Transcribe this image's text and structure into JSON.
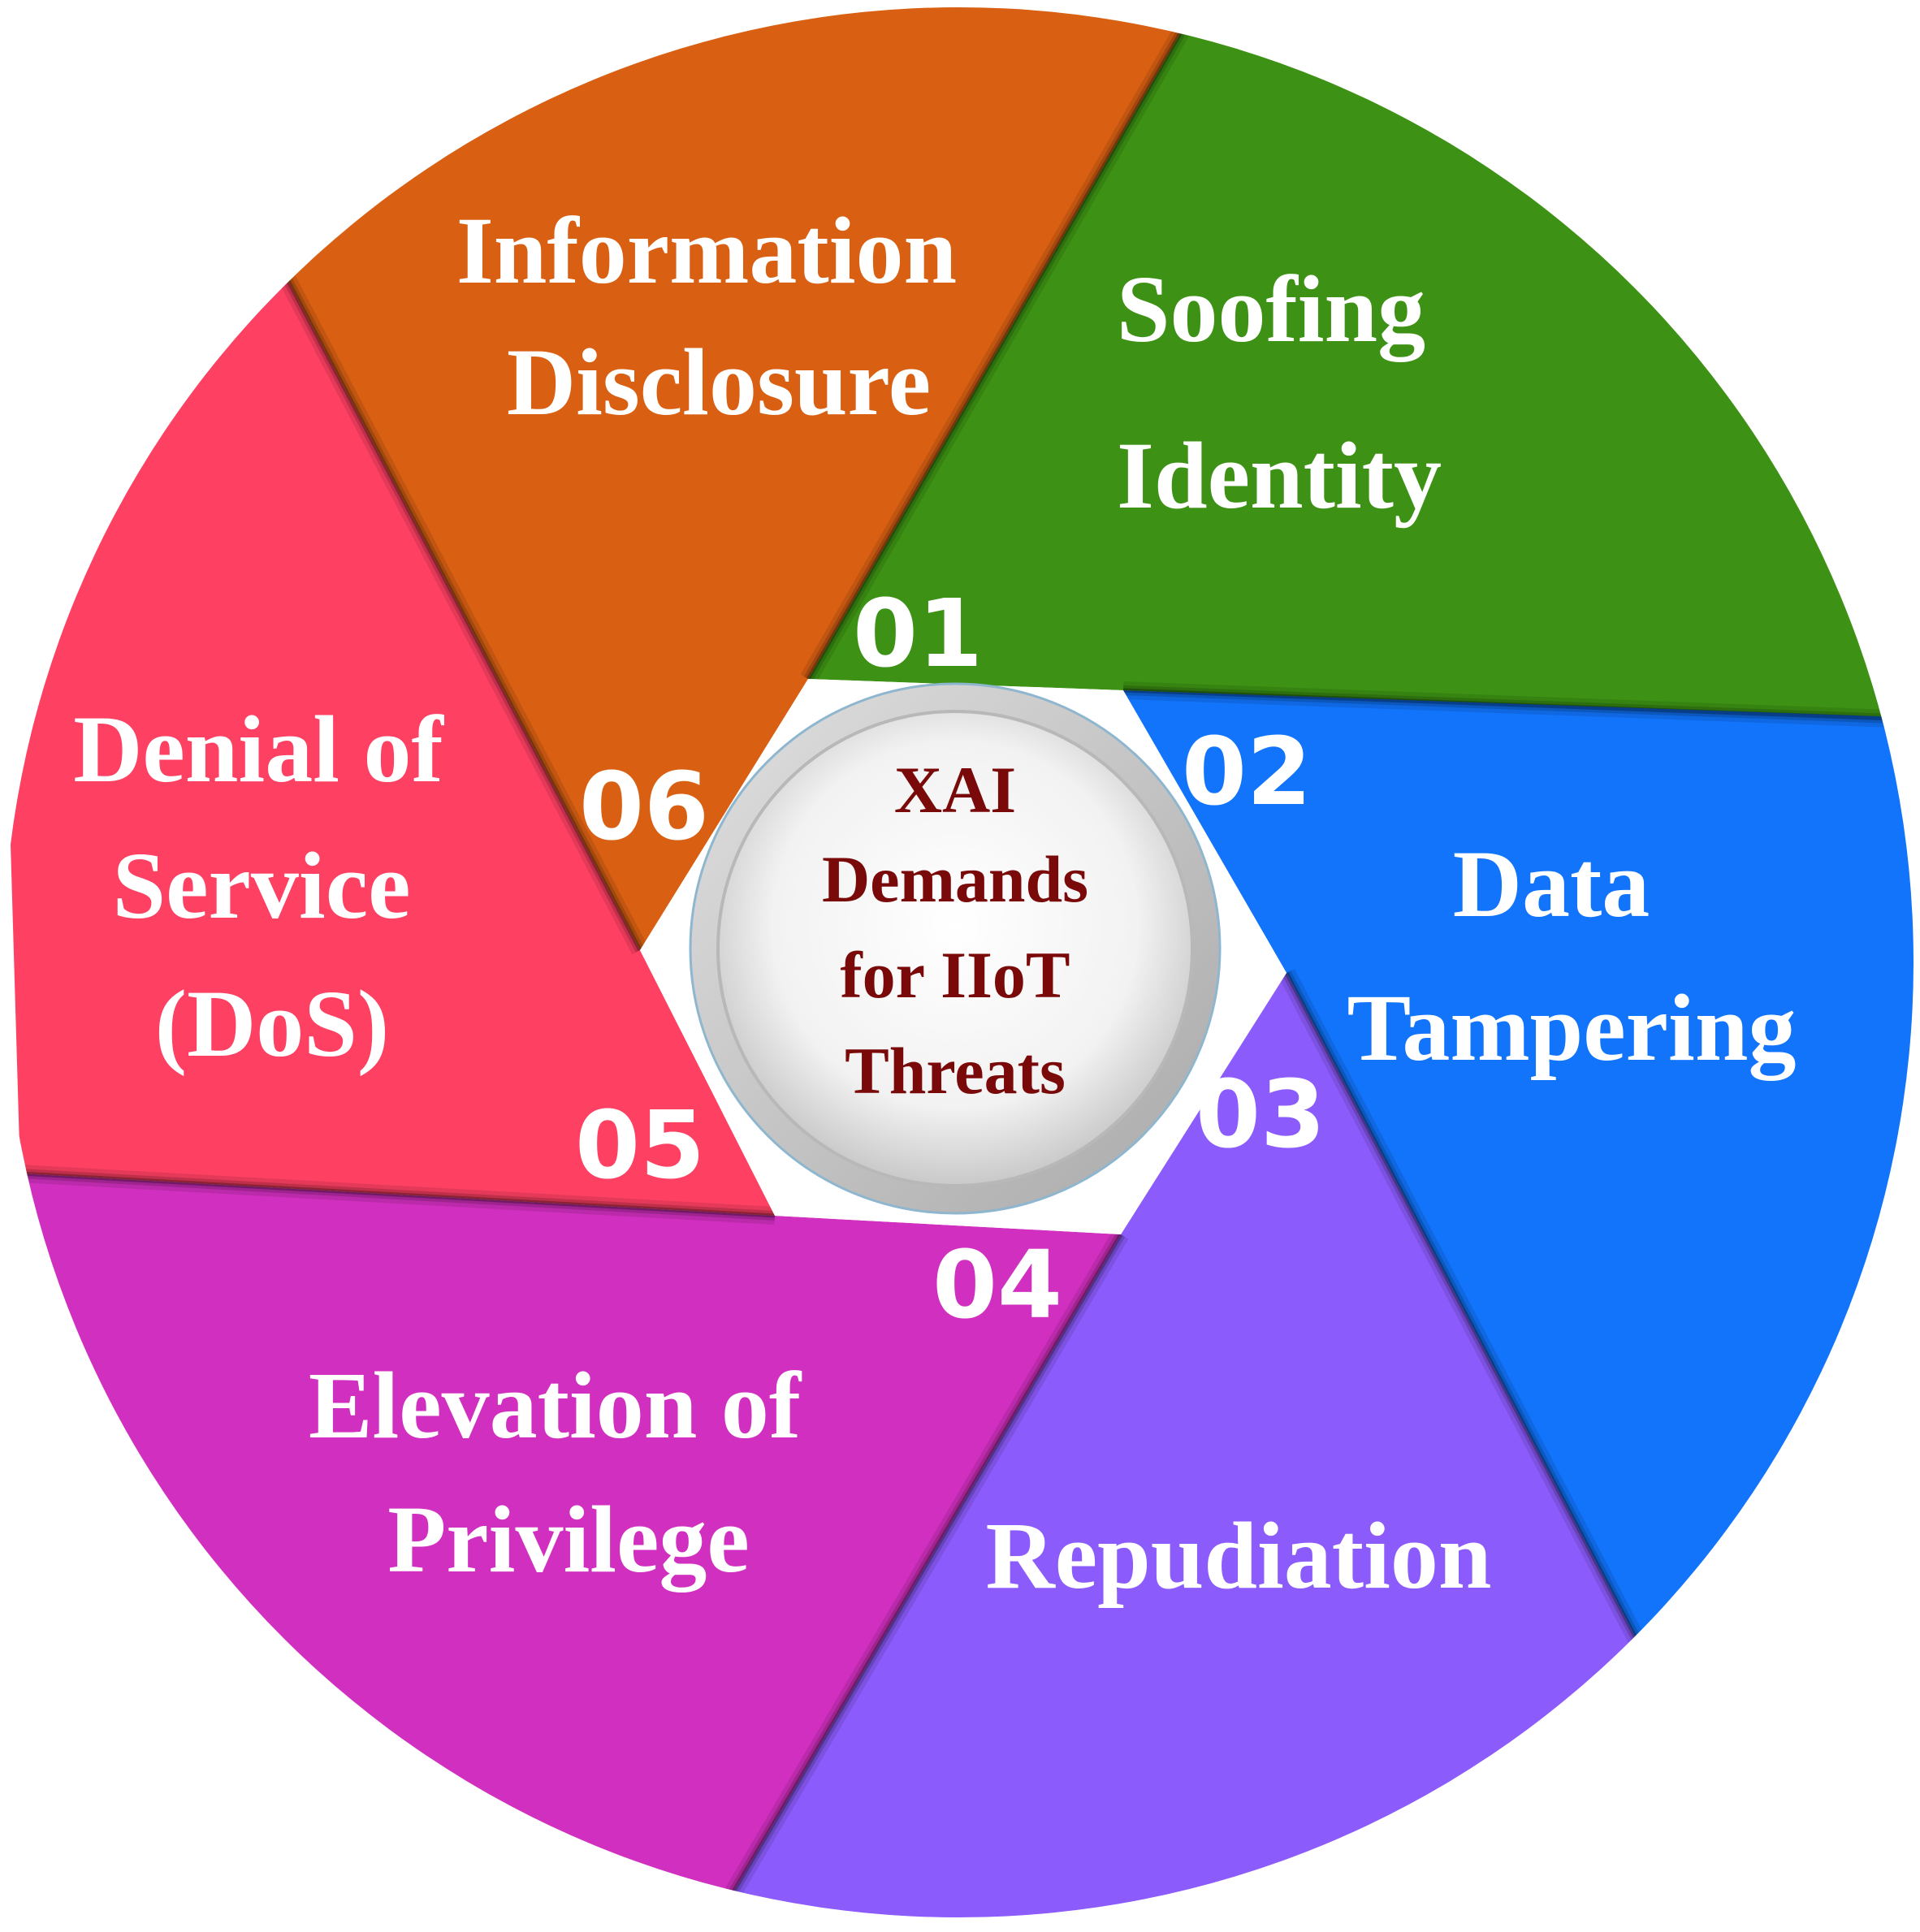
{
  "center": {
    "lines": [
      "XAI",
      "Demands",
      "for IIoT",
      "Threats"
    ],
    "text_color": "#7a0a0a"
  },
  "segments": [
    {
      "number": "01",
      "label_lines": [
        "Soofing",
        "Identity"
      ],
      "color": "#3d9215"
    },
    {
      "number": "02",
      "label_lines": [
        "Data",
        "Tampering"
      ],
      "color": "#1174fb"
    },
    {
      "number": "03",
      "label_lines": [
        "Repudiation"
      ],
      "color": "#8c5bfb"
    },
    {
      "number": "04",
      "label_lines": [
        "Elevation of",
        "Privilege"
      ],
      "color": "#d12fbf"
    },
    {
      "number": "05",
      "label_lines": [
        "Denial of",
        "Service",
        "(DoS)"
      ],
      "color": "#fe4063"
    },
    {
      "number": "06",
      "label_lines": [
        "Information",
        "Disclosure"
      ],
      "color": "#d96013"
    }
  ]
}
